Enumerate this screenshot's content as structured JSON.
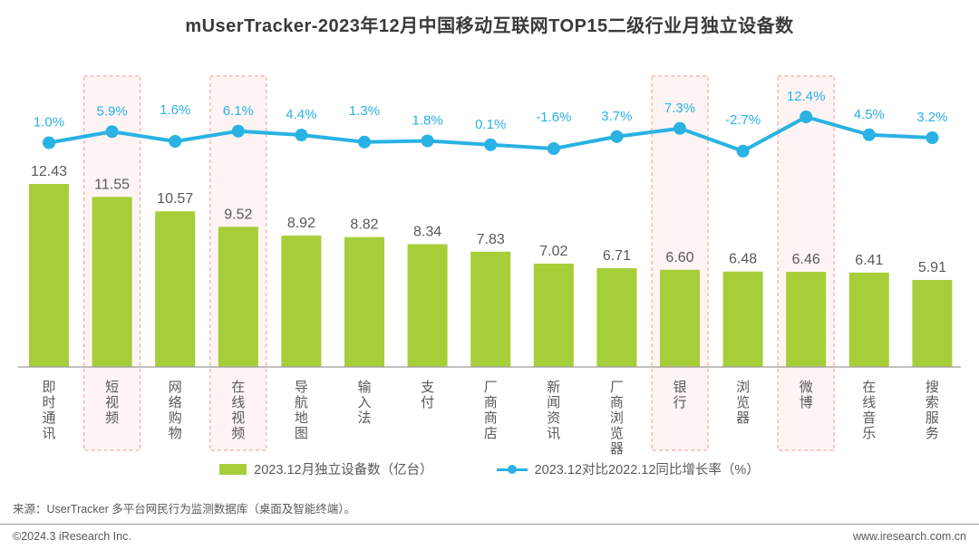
{
  "title": "mUserTracker-2023年12月中国移动互联网TOP15二级行业月独立设备数",
  "chart_data": {
    "type": "bar",
    "categories": [
      "即时通讯",
      "短视频",
      "网络购物",
      "在线视频",
      "导航地图",
      "输入法",
      "支付",
      "厂商商店",
      "新闻资讯",
      "厂商浏览器",
      "银行",
      "浏览器",
      "微博",
      "在线音乐",
      "搜索服务"
    ],
    "series": [
      {
        "name": "2023.12月独立设备数（亿台）",
        "type": "bar",
        "color": "#a6ce39",
        "values": [
          12.43,
          11.55,
          10.57,
          9.52,
          8.92,
          8.82,
          8.34,
          7.83,
          7.02,
          6.71,
          6.6,
          6.48,
          6.46,
          6.41,
          5.91
        ]
      },
      {
        "name": "2023.12对比2022.12同比增长率（%）",
        "type": "line",
        "color": "#29b2e3",
        "values": [
          1.0,
          5.9,
          1.6,
          6.1,
          4.4,
          1.3,
          1.8,
          0.1,
          -1.6,
          3.7,
          7.3,
          -2.7,
          12.4,
          4.5,
          3.2
        ]
      }
    ],
    "highlighted_categories": [
      "短视频",
      "在线视频",
      "银行",
      "微博"
    ],
    "highlight_fill": "#fdf4f3",
    "highlight_border": "#f0aea8",
    "bar_value_color": "#595959",
    "category_label_color": "#595959",
    "axis_color": "#9c9c9c",
    "legend_position": "bottom",
    "grid": false,
    "ylabel": "",
    "xlabel": ""
  },
  "source": "来源：UserTracker 多平台网民行为监测数据库（桌面及智能终端）。",
  "footer": {
    "copyright": "©2024.3 iResearch Inc.",
    "website": "www.iresearch.com.cn"
  }
}
